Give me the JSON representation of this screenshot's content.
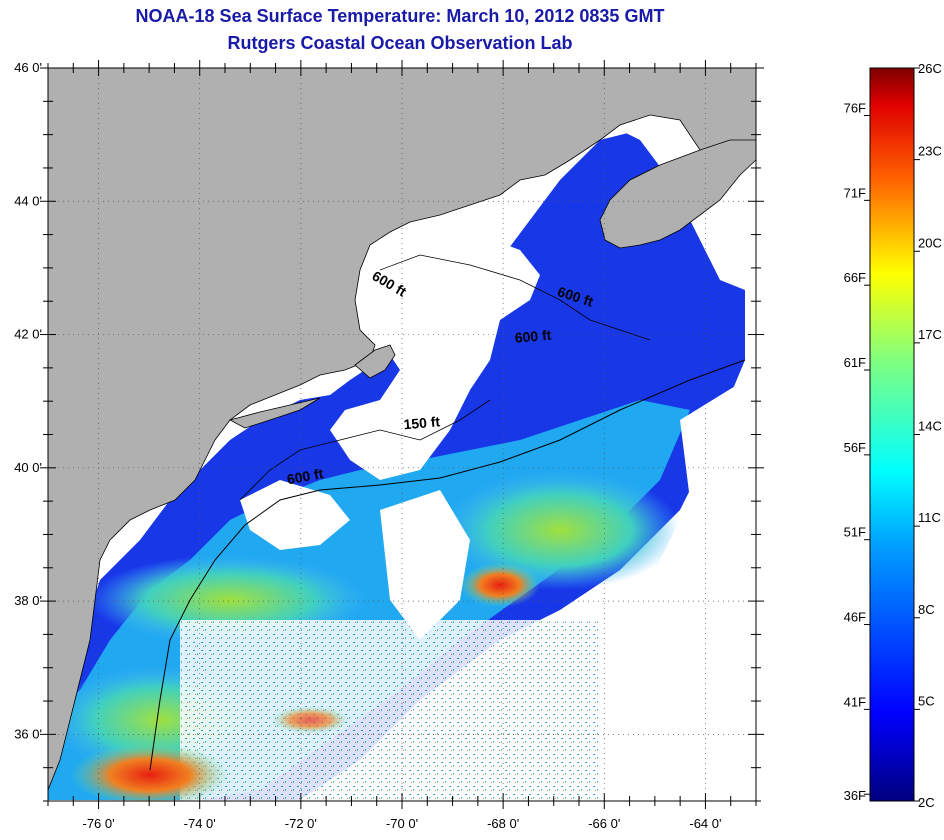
{
  "title": "NOAA-18 Sea Surface Temperature:  March 10, 2012 0835 GMT",
  "subtitle": "Rutgers Coastal Ocean Observation Lab",
  "map": {
    "lon_range": [
      -77,
      -63
    ],
    "lat_range": [
      35,
      46
    ],
    "lat_ticks": [
      {
        "value": 46,
        "label": "46 0'"
      },
      {
        "value": 44,
        "label": "44 0'"
      },
      {
        "value": 42,
        "label": "42 0'"
      },
      {
        "value": 40,
        "label": "40 0'"
      },
      {
        "value": 38,
        "label": "38 0'"
      },
      {
        "value": 36,
        "label": "36 0'"
      }
    ],
    "lon_ticks": [
      {
        "value": -76,
        "label": "-76 0'"
      },
      {
        "value": -74,
        "label": "-74 0'"
      },
      {
        "value": -72,
        "label": "-72 0'"
      },
      {
        "value": -70,
        "label": "-70 0'"
      },
      {
        "value": -68,
        "label": "-68 0'"
      },
      {
        "value": -66,
        "label": "-66 0'"
      },
      {
        "value": -64,
        "label": "-64 0'"
      }
    ],
    "grid": "dotted",
    "colors": {
      "land": "#b0b0b0",
      "cloud": "#ffffff",
      "cold": "#1020e0",
      "warm": "#e02010"
    },
    "contour_labels": [
      {
        "text": "600 ft",
        "lon": -70.3,
        "lat": 42.7,
        "angle": 30
      },
      {
        "text": "600 ft",
        "lon": -66.6,
        "lat": 42.5,
        "angle": 18
      },
      {
        "text": "600 ft",
        "lon": -67.4,
        "lat": 41.9,
        "angle": -5
      },
      {
        "text": "150 ft",
        "lon": -69.6,
        "lat": 40.6,
        "angle": -5
      },
      {
        "text": "600 ft",
        "lon": -71.9,
        "lat": 39.8,
        "angle": -10
      }
    ]
  },
  "colorbar": {
    "range_c": [
      2,
      26
    ],
    "c_labels": [
      "26C",
      "23C",
      "20C",
      "17C",
      "14C",
      "11C",
      "8C",
      "5C",
      "2C"
    ],
    "f_labels": [
      "76F",
      "71F",
      "66F",
      "61F",
      "56F",
      "51F",
      "46F",
      "41F",
      "36F"
    ],
    "f_values": [
      76,
      71,
      66,
      61,
      56,
      51,
      46,
      41,
      36
    ],
    "c_values": [
      26,
      23,
      20,
      17,
      14,
      11,
      8,
      5,
      2
    ]
  }
}
